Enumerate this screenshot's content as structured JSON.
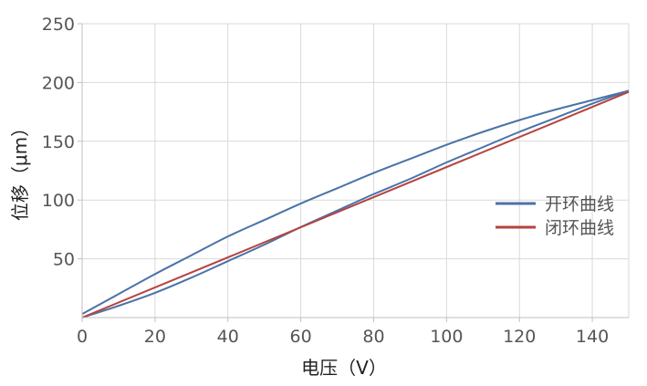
{
  "chart_data": {
    "type": "line",
    "title": "",
    "xlabel": "电压（V）",
    "ylabel": "位移（μm）",
    "xlim": [
      0,
      150
    ],
    "ylim": [
      0,
      250
    ],
    "xticks": [
      0,
      20,
      40,
      60,
      80,
      100,
      120,
      140
    ],
    "yticks": [
      50,
      100,
      150,
      200,
      250
    ],
    "grid": true,
    "legend_position": "right",
    "series": [
      {
        "name": "开环曲线",
        "color": "#4a72a8",
        "segments": [
          {
            "x": [
              0,
              10,
              20,
              30,
              40,
              50,
              60,
              70,
              80,
              90,
              100,
              110,
              120,
              130,
              140,
              150
            ],
            "y": [
              0,
              10,
              21,
              34,
              48,
              62,
              77,
              91,
              105,
              118,
              132,
              145,
              158,
              170,
              182,
              193
            ]
          },
          {
            "x": [
              150,
              140,
              130,
              120,
              110,
              100,
              90,
              80,
              70,
              60,
              50,
              40,
              30,
              20,
              10,
              0
            ],
            "y": [
              193,
              185,
              177,
              168,
              158,
              147,
              135,
              123,
              110,
              97,
              83,
              69,
              53,
              37,
              20,
              3
            ]
          }
        ]
      },
      {
        "name": "闭环曲线",
        "color": "#b5443f",
        "segments": [
          {
            "x": [
              0,
              150
            ],
            "y": [
              0,
              192
            ]
          }
        ]
      }
    ]
  }
}
